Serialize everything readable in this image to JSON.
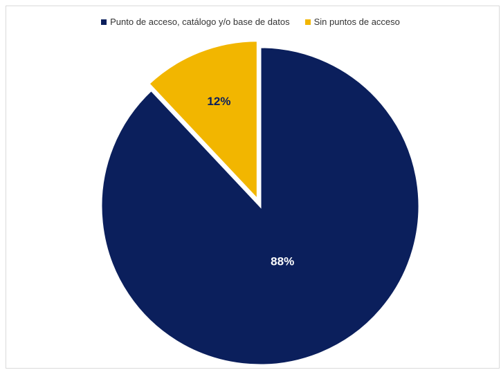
{
  "chart_data": {
    "type": "pie",
    "categories": [
      "Punto de acceso, catálogo y/o base de datos",
      "Sin puntos de acceso"
    ],
    "values": [
      88,
      12
    ],
    "labels": [
      "88%",
      "12%"
    ],
    "colors": [
      "#0b1f5c",
      "#f2b600"
    ],
    "label_colors": [
      "#ffffff",
      "#0b1f5c"
    ],
    "legend_position": "top"
  }
}
